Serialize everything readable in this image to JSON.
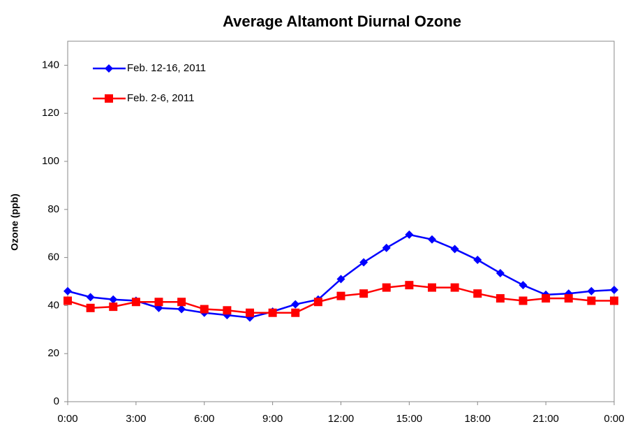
{
  "chart_data": {
    "type": "line",
    "title": "Average Altamont Diurnal Ozone",
    "y_label": "Ozone (ppb)",
    "categories": [
      "0:00",
      null,
      null,
      "3:00",
      null,
      null,
      "6:00",
      null,
      null,
      "9:00",
      null,
      null,
      "12:00",
      null,
      null,
      "15:00",
      null,
      null,
      "18:00",
      null,
      null,
      "21:00",
      null,
      null,
      "0:00"
    ],
    "series": [
      {
        "name": "Feb. 12-16, 2011",
        "color": "#0000ff",
        "marker": "diamond",
        "values": [
          46,
          43.5,
          42.5,
          42,
          39,
          38.5,
          37,
          36,
          35,
          37.5,
          40.5,
          42.5,
          51,
          58,
          64,
          69.5,
          67.5,
          63.5,
          59,
          53.5,
          48.5,
          44.5,
          45,
          46,
          46.5
        ]
      },
      {
        "name": "Feb. 2-6, 2011",
        "color": "#ff0000",
        "marker": "square",
        "values": [
          42,
          39,
          39.5,
          41.5,
          41.5,
          41.5,
          38.5,
          38,
          37,
          37,
          37,
          41.5,
          44,
          45,
          47.5,
          48.5,
          47.5,
          47.5,
          45,
          43,
          42,
          43,
          43,
          42,
          42
        ]
      }
    ],
    "ylim": [
      0,
      150
    ],
    "yticks": [
      0,
      20,
      40,
      60,
      80,
      100,
      120,
      140
    ],
    "grid": false,
    "legend": "upper left"
  }
}
